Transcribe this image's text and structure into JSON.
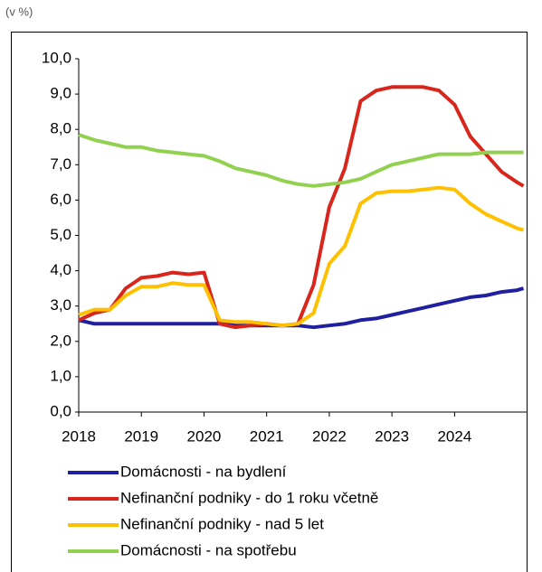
{
  "chart_data": {
    "type": "line",
    "unit_label": "(v %)",
    "x": [
      2018,
      2018.25,
      2018.5,
      2018.75,
      2019,
      2019.25,
      2019.5,
      2019.75,
      2020,
      2020.25,
      2020.5,
      2020.75,
      2021,
      2021.25,
      2021.5,
      2021.75,
      2022,
      2022.25,
      2022.5,
      2022.75,
      2023,
      2023.25,
      2023.5,
      2023.75,
      2024,
      2024.25,
      2024.5,
      2024.75,
      2025,
      2025.1
    ],
    "xlim": [
      2018,
      2025.15
    ],
    "xticks": [
      2018,
      2019,
      2020,
      2021,
      2022,
      2023,
      2024
    ],
    "ylim": [
      0,
      10
    ],
    "yticks": [
      {
        "value": 0,
        "label": "0,0"
      },
      {
        "value": 1,
        "label": "1,0"
      },
      {
        "value": 2,
        "label": "2,0"
      },
      {
        "value": 3,
        "label": "3,0"
      },
      {
        "value": 4,
        "label": "4,0"
      },
      {
        "value": 5,
        "label": "5,0"
      },
      {
        "value": 6,
        "label": "6,0"
      },
      {
        "value": 7,
        "label": "7,0"
      },
      {
        "value": 8,
        "label": "8,0"
      },
      {
        "value": 9,
        "label": "9,0"
      },
      {
        "value": 10,
        "label": "10,0"
      }
    ],
    "grid": false,
    "series": [
      {
        "name": "Domácnosti - na bydlení",
        "color": "#1f1fa0",
        "values": [
          2.6,
          2.5,
          2.5,
          2.5,
          2.5,
          2.5,
          2.5,
          2.5,
          2.5,
          2.5,
          2.45,
          2.45,
          2.45,
          2.45,
          2.45,
          2.4,
          2.45,
          2.5,
          2.6,
          2.65,
          2.75,
          2.85,
          2.95,
          3.05,
          3.15,
          3.25,
          3.3,
          3.4,
          3.45,
          3.5
        ]
      },
      {
        "name": "Nefinanční podniky - do 1 roku včetně",
        "color": "#d9261c",
        "values": [
          2.6,
          2.8,
          2.9,
          3.5,
          3.8,
          3.85,
          3.95,
          3.9,
          3.95,
          2.5,
          2.4,
          2.45,
          2.5,
          2.45,
          2.5,
          3.6,
          5.8,
          6.9,
          8.8,
          9.1,
          9.2,
          9.2,
          9.2,
          9.1,
          8.7,
          7.8,
          7.3,
          6.8,
          6.5,
          6.4
        ]
      },
      {
        "name": "Nefinanční podniky - nad 5 let",
        "color": "#ffc000",
        "values": [
          2.75,
          2.9,
          2.9,
          3.3,
          3.55,
          3.55,
          3.65,
          3.6,
          3.6,
          2.6,
          2.55,
          2.55,
          2.5,
          2.45,
          2.5,
          2.8,
          4.2,
          4.7,
          5.9,
          6.2,
          6.25,
          6.25,
          6.3,
          6.35,
          6.3,
          5.9,
          5.6,
          5.4,
          5.2,
          5.15
        ]
      },
      {
        "name": "Domácnosti - na spotřebu",
        "color": "#92d050",
        "values": [
          7.85,
          7.7,
          7.6,
          7.5,
          7.5,
          7.4,
          7.35,
          7.3,
          7.25,
          7.1,
          6.9,
          6.8,
          6.7,
          6.55,
          6.45,
          6.4,
          6.45,
          6.5,
          6.6,
          6.8,
          7.0,
          7.1,
          7.2,
          7.3,
          7.3,
          7.3,
          7.35,
          7.35,
          7.35,
          7.35
        ]
      }
    ]
  }
}
